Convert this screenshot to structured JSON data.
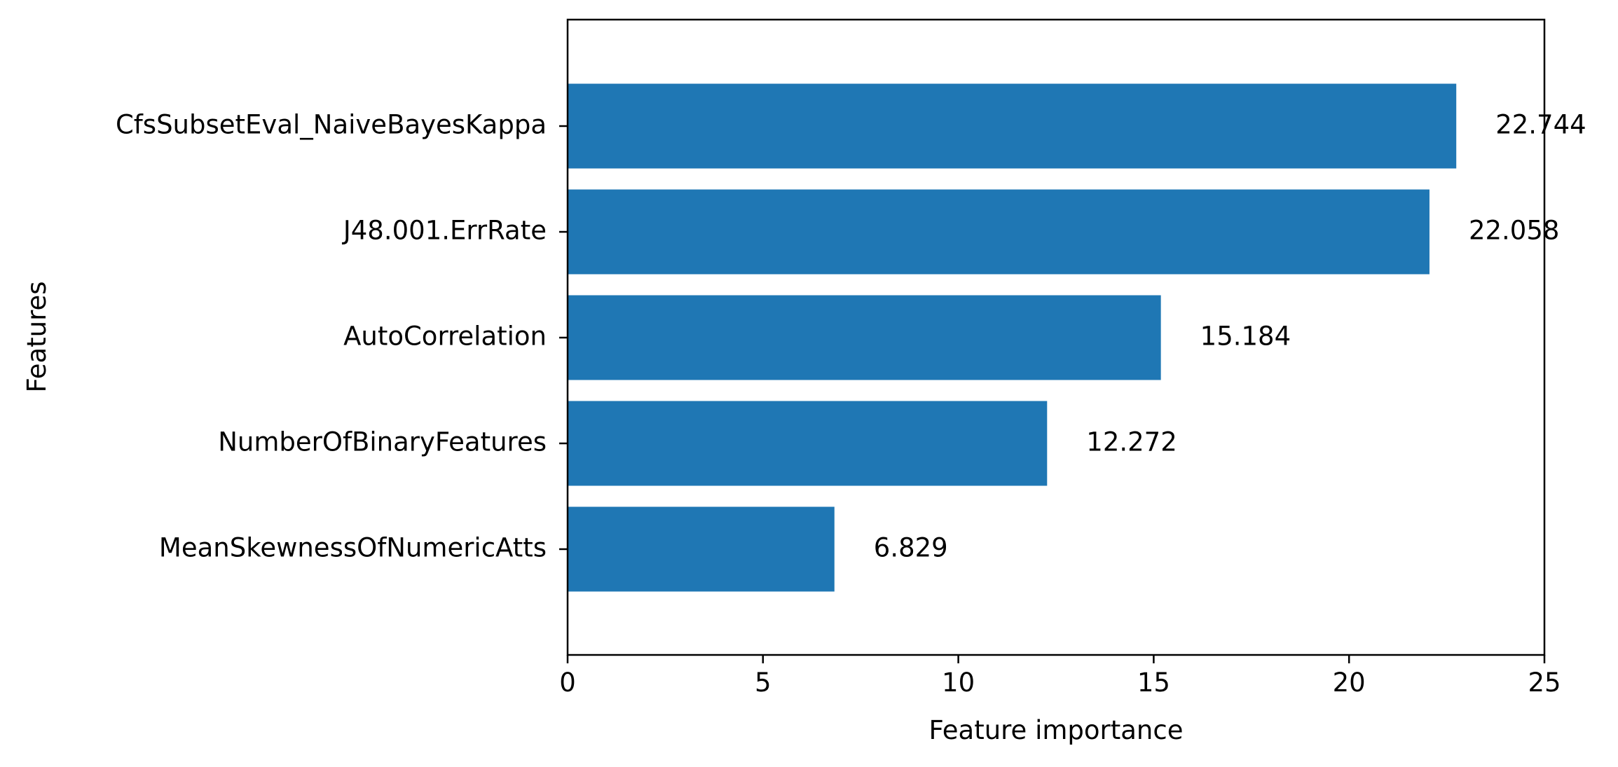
{
  "chart_data": {
    "type": "bar",
    "orientation": "horizontal",
    "categories": [
      "CfsSubsetEval_NaiveBayesKappa",
      "J48.001.ErrRate",
      "AutoCorrelation",
      "NumberOfBinaryFeatures",
      "MeanSkewnessOfNumericAtts"
    ],
    "values": [
      22.744,
      22.058,
      15.184,
      12.272,
      6.829
    ],
    "value_labels": [
      "22.744",
      "22.058",
      "15.184",
      "12.272",
      "6.829"
    ],
    "xlabel": "Feature importance",
    "ylabel": "Features",
    "xlim": [
      0,
      25
    ],
    "xticks": [
      0,
      5,
      10,
      15,
      20,
      25
    ],
    "xtick_labels": [
      "0",
      "5",
      "10",
      "15",
      "20",
      "25"
    ],
    "grid": false,
    "bar_color": "#1f77b4"
  }
}
